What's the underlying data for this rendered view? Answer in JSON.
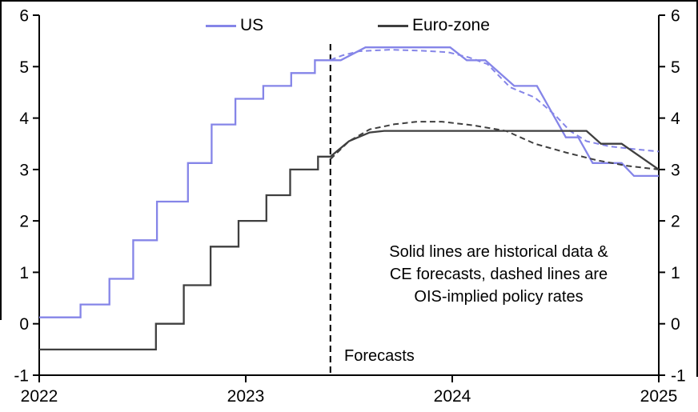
{
  "legend": {
    "us": "US",
    "eurozone": "Euro-zone"
  },
  "annotation": {
    "lines": [
      "Solid lines are historical data &",
      "CE forecasts, dashed lines are",
      "OIS-implied policy rates"
    ]
  },
  "forecast_label": "Forecasts",
  "colors": {
    "us": "#8585e8",
    "eurozone": "#3f3f3f",
    "axis": "#000000"
  },
  "chart_data": {
    "type": "line",
    "title": "",
    "xlabel": "",
    "ylabel": "",
    "xlim": [
      2022,
      2025
    ],
    "ylim": [
      -1,
      6
    ],
    "x_ticks": [
      2022,
      2023,
      2024,
      2025
    ],
    "y_ticks": [
      -1,
      0,
      1,
      2,
      3,
      4,
      5,
      6
    ],
    "grid": false,
    "legend_position": "top",
    "forecast_line_x": 2023.41,
    "series": [
      {
        "name": "US policy rate (historical data & CE forecasts)",
        "color_key": "us",
        "style": "solid",
        "points": [
          [
            2022.0,
            0.125
          ],
          [
            2022.2,
            0.125
          ],
          [
            2022.2,
            0.375
          ],
          [
            2022.34,
            0.375
          ],
          [
            2022.34,
            0.875
          ],
          [
            2022.455,
            0.875
          ],
          [
            2022.455,
            1.625
          ],
          [
            2022.57,
            1.625
          ],
          [
            2022.57,
            2.375
          ],
          [
            2022.72,
            2.375
          ],
          [
            2022.72,
            3.125
          ],
          [
            2022.835,
            3.125
          ],
          [
            2022.835,
            3.875
          ],
          [
            2022.95,
            3.875
          ],
          [
            2022.95,
            4.375
          ],
          [
            2023.085,
            4.375
          ],
          [
            2023.085,
            4.625
          ],
          [
            2023.22,
            4.625
          ],
          [
            2023.22,
            4.875
          ],
          [
            2023.335,
            4.875
          ],
          [
            2023.335,
            5.125
          ],
          [
            2023.46,
            5.125
          ],
          [
            2023.58,
            5.375
          ],
          [
            2023.99,
            5.375
          ],
          [
            2024.07,
            5.125
          ],
          [
            2024.16,
            5.125
          ],
          [
            2024.3,
            4.625
          ],
          [
            2024.41,
            4.625
          ],
          [
            2024.55,
            3.625
          ],
          [
            2024.61,
            3.625
          ],
          [
            2024.68,
            3.125
          ],
          [
            2024.82,
            3.125
          ],
          [
            2024.88,
            2.875
          ],
          [
            2025.0,
            2.875
          ]
        ]
      },
      {
        "name": "US OIS-implied policy rate",
        "color_key": "us",
        "style": "dashed",
        "points": [
          [
            2023.41,
            5.13
          ],
          [
            2023.47,
            5.22
          ],
          [
            2023.55,
            5.3
          ],
          [
            2023.7,
            5.33
          ],
          [
            2023.85,
            5.31
          ],
          [
            2023.98,
            5.28
          ],
          [
            2024.08,
            5.18
          ],
          [
            2024.17,
            5.05
          ],
          [
            2024.28,
            4.6
          ],
          [
            2024.4,
            4.4
          ],
          [
            2024.5,
            4.05
          ],
          [
            2024.57,
            3.75
          ],
          [
            2024.65,
            3.55
          ],
          [
            2024.76,
            3.45
          ],
          [
            2024.87,
            3.4
          ],
          [
            2025.0,
            3.35
          ]
        ]
      },
      {
        "name": "Euro-zone policy rate (historical data & CE forecasts)",
        "color_key": "eurozone",
        "style": "solid",
        "points": [
          [
            2022.0,
            -0.5
          ],
          [
            2022.565,
            -0.5
          ],
          [
            2022.565,
            0.0
          ],
          [
            2022.7,
            0.0
          ],
          [
            2022.7,
            0.75
          ],
          [
            2022.83,
            0.75
          ],
          [
            2022.83,
            1.5
          ],
          [
            2022.965,
            1.5
          ],
          [
            2022.965,
            2.0
          ],
          [
            2023.1,
            2.0
          ],
          [
            2023.1,
            2.5
          ],
          [
            2023.215,
            2.5
          ],
          [
            2023.215,
            3.0
          ],
          [
            2023.35,
            3.0
          ],
          [
            2023.35,
            3.25
          ],
          [
            2023.41,
            3.25
          ],
          [
            2023.5,
            3.55
          ],
          [
            2023.6,
            3.72
          ],
          [
            2023.67,
            3.75
          ],
          [
            2024.65,
            3.75
          ],
          [
            2024.72,
            3.5
          ],
          [
            2024.82,
            3.5
          ],
          [
            2025.0,
            3.0
          ]
        ]
      },
      {
        "name": "Euro-zone OIS-implied policy rate",
        "color_key": "eurozone",
        "style": "dashed",
        "points": [
          [
            2023.41,
            3.2
          ],
          [
            2023.5,
            3.55
          ],
          [
            2023.6,
            3.78
          ],
          [
            2023.72,
            3.88
          ],
          [
            2023.83,
            3.93
          ],
          [
            2023.95,
            3.93
          ],
          [
            2024.1,
            3.86
          ],
          [
            2024.26,
            3.75
          ],
          [
            2024.4,
            3.5
          ],
          [
            2024.55,
            3.33
          ],
          [
            2024.7,
            3.18
          ],
          [
            2024.85,
            3.07
          ],
          [
            2025.0,
            3.0
          ]
        ]
      }
    ]
  }
}
